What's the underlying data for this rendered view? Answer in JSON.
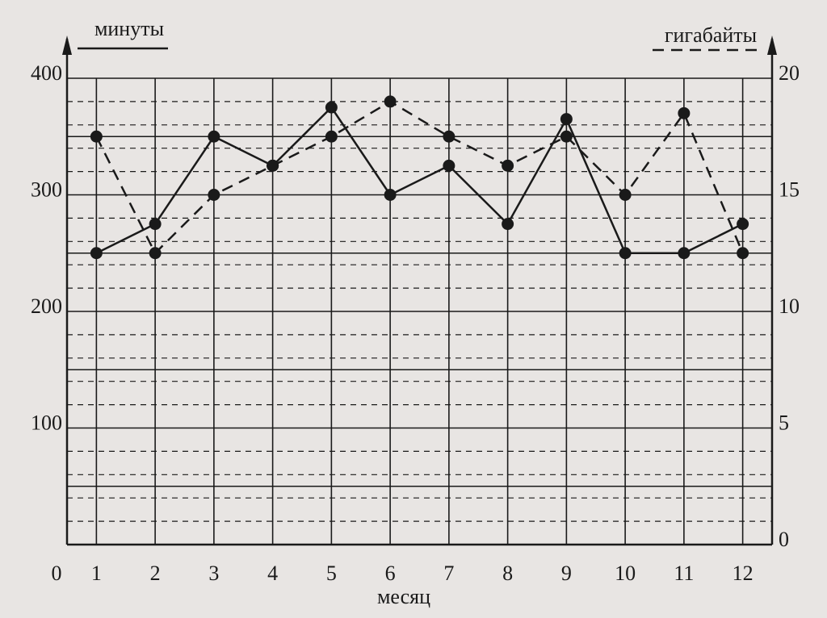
{
  "chart_data": {
    "type": "line",
    "x": [
      1,
      2,
      3,
      4,
      5,
      6,
      7,
      8,
      9,
      10,
      11,
      12
    ],
    "xlim": [
      0.5,
      12.5
    ],
    "xticks": [
      1,
      2,
      3,
      4,
      5,
      6,
      7,
      8,
      9,
      10,
      11,
      12
    ],
    "origin_label": "0",
    "xlabel": "месяц",
    "ylim": [
      0,
      400
    ],
    "yticks": [
      100,
      200,
      300,
      400
    ],
    "y_minor_ticks": [
      50,
      100,
      150,
      200,
      250,
      300,
      350,
      400
    ],
    "y2lim": [
      0,
      20
    ],
    "y2ticks": [
      0,
      5,
      10,
      15,
      20
    ],
    "y2_minor_ticks": [
      1,
      2,
      3,
      4,
      6,
      7,
      8,
      9,
      11,
      12,
      13,
      14,
      16,
      17,
      18,
      19
    ],
    "grid": true,
    "series": [
      {
        "name": "минуты",
        "color": "#1a1a1a",
        "dash": false,
        "values": [
          250,
          275,
          350,
          325,
          375,
          300,
          325,
          275,
          365,
          250,
          250,
          275
        ]
      },
      {
        "name": "гигабайты",
        "color": "#1a1a1a",
        "dash": true,
        "axis": "y2",
        "values": [
          17.5,
          12.5,
          15,
          16.25,
          17.5,
          19,
          17.5,
          16.25,
          17.5,
          15,
          18.5,
          12.5
        ]
      }
    ]
  }
}
